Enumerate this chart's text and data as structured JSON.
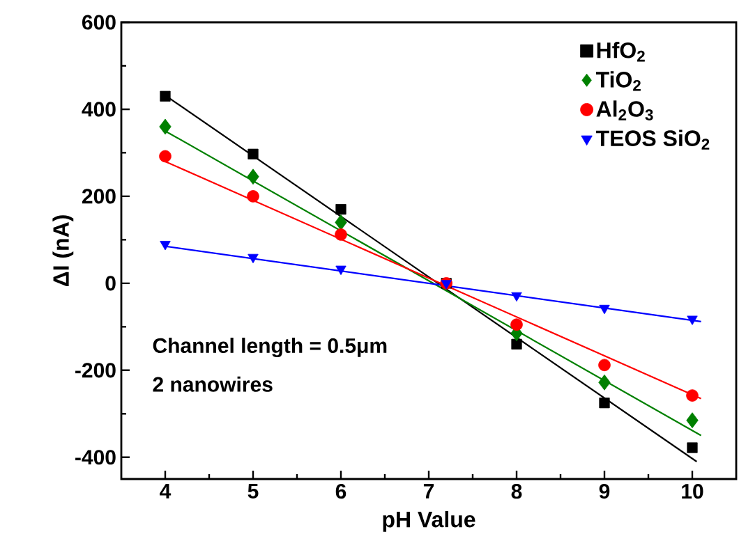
{
  "chart_data": {
    "type": "scatter",
    "xlabel": "pH Value",
    "ylabel": "ΔI (nA)",
    "x": [
      4,
      5,
      6,
      7.2,
      8,
      9,
      10
    ],
    "xlim": [
      3.5,
      10.5
    ],
    "xticks": [
      4,
      5,
      6,
      7,
      8,
      9,
      10
    ],
    "ylim": [
      -450,
      600
    ],
    "yticks": [
      -400,
      -200,
      0,
      200,
      400,
      600
    ],
    "legend": "top right",
    "grid": false,
    "annotations": [
      "Channel length = 0.5μm",
      "2 nanowires"
    ],
    "series": [
      {
        "name": "HfO$_{2}$",
        "color": "#000000",
        "marker": "square",
        "values": [
          430,
          297,
          170,
          0,
          -140,
          -275,
          -378
        ]
      },
      {
        "name": "TiO$_{2}$",
        "color": "#008000",
        "marker": "diamond",
        "values": [
          360,
          245,
          140,
          null,
          -115,
          -228,
          -315
        ]
      },
      {
        "name": "Al$_{2}$O$_{3}$",
        "color": "#ff0000",
        "marker": "circle",
        "values": [
          292,
          200,
          112,
          0,
          -95,
          -188,
          -258
        ]
      },
      {
        "name": "TEOS SiO$_{2}$",
        "color": "#0000ff",
        "marker": "triangle",
        "values": [
          90,
          60,
          33,
          0,
          -28,
          -57,
          -82
        ]
      },
      {
        "type": "line",
        "color": "#000000",
        "x": [
          4,
          10.05
        ],
        "values": [
          432,
          -410
        ]
      },
      {
        "type": "line",
        "color": "#008000",
        "x": [
          4,
          10.1
        ],
        "values": [
          350,
          -350
        ]
      },
      {
        "type": "line",
        "color": "#ff0000",
        "x": [
          4,
          10.1
        ],
        "values": [
          280,
          -265
        ]
      },
      {
        "type": "line",
        "color": "#0000ff",
        "x": [
          4,
          10.1
        ],
        "values": [
          85,
          -88
        ]
      }
    ]
  }
}
